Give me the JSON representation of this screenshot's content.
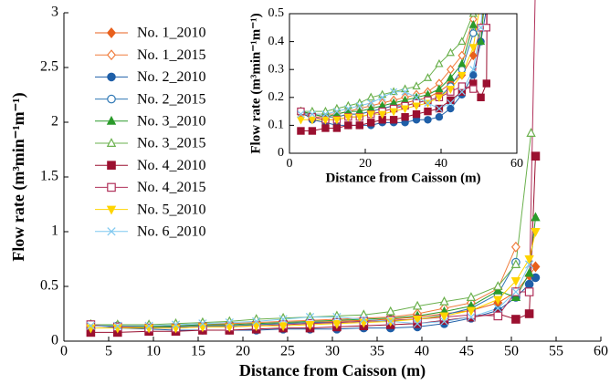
{
  "chart_data": [
    {
      "type": "line",
      "xlabel": "Distance from Caisson (m)",
      "ylabel": "Flow rate (m³min⁻¹m⁻¹)",
      "xlim": [
        0,
        60
      ],
      "ylim": [
        0,
        3
      ],
      "xticks": [
        0,
        5,
        10,
        15,
        20,
        25,
        30,
        35,
        40,
        45,
        50,
        55,
        60
      ],
      "yticks": [
        0,
        0.5,
        1,
        1.5,
        2,
        2.5,
        3
      ],
      "legend": "upper-left",
      "series": [
        {
          "name": "No. 1_2010",
          "color": "#e8601c",
          "marker": "diamond",
          "filled": true,
          "x": [
            3,
            6,
            9.5,
            12.5,
            15.5,
            18.5,
            21.5,
            24.5,
            27.5,
            30.5,
            33.5,
            36.5,
            39.5,
            42.5,
            45.5,
            48.5,
            50.5,
            52,
            52.7
          ],
          "values": [
            0.14,
            0.13,
            0.13,
            0.13,
            0.14,
            0.14,
            0.15,
            0.16,
            0.17,
            0.18,
            0.19,
            0.2,
            0.22,
            0.25,
            0.28,
            0.35,
            0.45,
            0.6,
            0.68
          ]
        },
        {
          "name": "No. 1_2015",
          "color": "#f07c3c",
          "marker": "diamond",
          "filled": false,
          "x": [
            3,
            6,
            9.5,
            12.5,
            15.5,
            18.5,
            21.5,
            24.5,
            27.5,
            30.5,
            33.5,
            36.5,
            39.5,
            42.5,
            45.5,
            48.5,
            50.5
          ],
          "values": [
            0.15,
            0.14,
            0.14,
            0.14,
            0.15,
            0.16,
            0.17,
            0.18,
            0.19,
            0.2,
            0.21,
            0.22,
            0.25,
            0.3,
            0.35,
            0.48,
            0.86
          ]
        },
        {
          "name": "No. 2_2010",
          "color": "#1f5fa8",
          "marker": "circle",
          "filled": true,
          "x": [
            3,
            6,
            9.5,
            12.5,
            15.5,
            18.5,
            21.5,
            24.5,
            27.5,
            30.5,
            33.5,
            36.5,
            39.5,
            42.5,
            45.5,
            48.5,
            50.5,
            52,
            52.7
          ],
          "values": [
            0.15,
            0.12,
            0.11,
            0.1,
            0.1,
            0.1,
            0.1,
            0.11,
            0.11,
            0.11,
            0.12,
            0.12,
            0.13,
            0.16,
            0.21,
            0.28,
            0.4,
            0.52,
            0.58
          ]
        },
        {
          "name": "No. 2_2015",
          "color": "#2f78b5",
          "marker": "circle",
          "filled": false,
          "x": [
            3,
            6,
            9.5,
            12.5,
            15.5,
            18.5,
            21.5,
            24.5,
            27.5,
            30.5,
            33.5,
            36.5,
            39.5,
            42.5,
            45.5,
            48.5,
            50.5
          ],
          "values": [
            0.15,
            0.14,
            0.13,
            0.13,
            0.14,
            0.14,
            0.15,
            0.16,
            0.17,
            0.17,
            0.18,
            0.19,
            0.2,
            0.24,
            0.3,
            0.43,
            0.72
          ]
        },
        {
          "name": "No. 3_2010",
          "color": "#2a9a2a",
          "marker": "triangle-up",
          "filled": true,
          "x": [
            3,
            6,
            9.5,
            12.5,
            15.5,
            18.5,
            21.5,
            24.5,
            27.5,
            30.5,
            33.5,
            36.5,
            39.5,
            42.5,
            45.5,
            48.5,
            50.5,
            52,
            52.7
          ],
          "values": [
            0.15,
            0.14,
            0.13,
            0.14,
            0.15,
            0.15,
            0.16,
            0.17,
            0.18,
            0.19,
            0.2,
            0.21,
            0.23,
            0.27,
            0.32,
            0.46,
            0.4,
            0.62,
            1.13
          ]
        },
        {
          "name": "No. 3_2015",
          "color": "#6ab04c",
          "marker": "triangle-up",
          "filled": false,
          "x": [
            3,
            6,
            9.5,
            12.5,
            15.5,
            18.5,
            21.5,
            24.5,
            27.5,
            30.5,
            33.5,
            36.5,
            39.5,
            42.5,
            45.5,
            48.5,
            50.5,
            52.2
          ],
          "values": [
            0.15,
            0.15,
            0.15,
            0.16,
            0.17,
            0.18,
            0.2,
            0.21,
            0.22,
            0.23,
            0.24,
            0.27,
            0.32,
            0.36,
            0.4,
            0.5,
            0.7,
            1.9
          ]
        },
        {
          "name": "No. 4_2010",
          "color": "#9b1030",
          "marker": "square",
          "filled": true,
          "x": [
            3,
            6,
            9.5,
            12.5,
            15.5,
            18.5,
            21.5,
            24.5,
            27.5,
            30.5,
            33.5,
            36.5,
            39.5,
            42.5,
            45.5,
            48.5,
            50.5,
            52,
            52.7
          ],
          "values": [
            0.08,
            0.08,
            0.09,
            0.09,
            0.1,
            0.1,
            0.11,
            0.12,
            0.12,
            0.13,
            0.14,
            0.15,
            0.16,
            0.19,
            0.22,
            0.25,
            0.2,
            0.25,
            1.69
          ]
        },
        {
          "name": "No. 4_2015",
          "color": "#b0305a",
          "marker": "square",
          "filled": false,
          "x": [
            3,
            6,
            9.5,
            12.5,
            15.5,
            18.5,
            21.5,
            24.5,
            27.5,
            30.5,
            33.5,
            36.5,
            39.5,
            42.5,
            45.5,
            48.5,
            50.5,
            52,
            52.7
          ],
          "values": [
            0.15,
            0.13,
            0.12,
            0.12,
            0.13,
            0.13,
            0.14,
            0.15,
            0.16,
            0.17,
            0.18,
            0.19,
            0.2,
            0.22,
            0.24,
            0.23,
            0.45,
            0.45,
            3.32
          ]
        },
        {
          "name": "No. 5_2010",
          "color": "#ffd400",
          "marker": "triangle-down",
          "filled": true,
          "x": [
            3,
            6,
            9.5,
            12.5,
            15.5,
            18.5,
            21.5,
            24.5,
            27.5,
            30.5,
            33.5,
            36.5,
            39.5,
            42.5,
            45.5,
            48.5,
            50.5,
            52,
            52.7
          ],
          "values": [
            0.12,
            0.12,
            0.12,
            0.12,
            0.13,
            0.13,
            0.14,
            0.14,
            0.15,
            0.16,
            0.17,
            0.18,
            0.2,
            0.23,
            0.28,
            0.38,
            0.55,
            0.75,
            1.0
          ]
        },
        {
          "name": "No. 6_2010",
          "color": "#7ec8f0",
          "marker": "x",
          "filled": false,
          "x": [
            3,
            6,
            9.5,
            12.5,
            15.5,
            18.5,
            21.5,
            24.5,
            27.5,
            30.5,
            33.5,
            36.5,
            39.5,
            42.5,
            45.5,
            48.5,
            50.5,
            52
          ],
          "values": [
            0.14,
            0.14,
            0.14,
            0.15,
            0.16,
            0.17,
            0.18,
            0.2,
            0.22,
            0.22,
            0.2,
            0.18,
            0.16,
            0.18,
            0.22,
            0.3,
            0.45,
            0.7
          ]
        }
      ]
    },
    {
      "type": "inset",
      "xlabel": "Distance from Caisson (m)",
      "ylabel": "Flow rate (m³min⁻¹m⁻¹)",
      "xlim": [
        0,
        60
      ],
      "ylim": [
        0,
        0.5
      ],
      "xticks": [
        0,
        20,
        40,
        60
      ],
      "yticks": [
        0,
        0.1,
        0.2,
        0.3,
        0.4,
        0.5
      ]
    }
  ]
}
